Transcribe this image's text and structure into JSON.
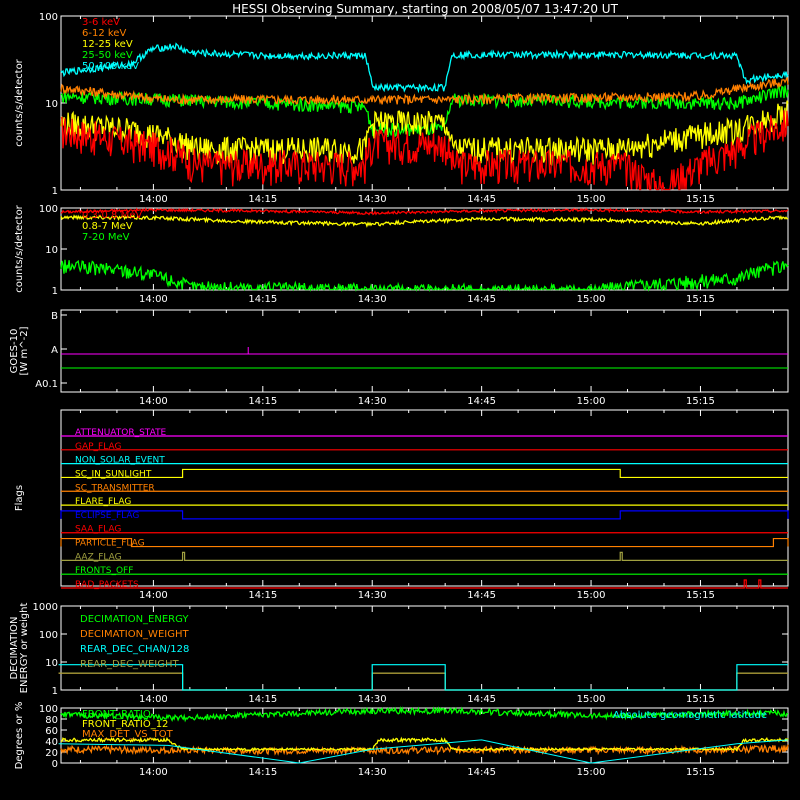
{
  "title": "HESSI Observing Summary, starting on 2008/05/07 13:47:20 UT",
  "colors": {
    "background": "#000000",
    "axis": "#ffffff",
    "red": "#ff0000",
    "orange": "#ff8000",
    "yellow": "#ffff00",
    "green": "#00ff00",
    "cyan": "#00ffff",
    "magenta": "#ff00ff",
    "blue": "#0000ff",
    "olive": "#a0a040"
  },
  "time_ticks": [
    "14:00",
    "14:15",
    "14:30",
    "14:45",
    "15:00",
    "15:15"
  ],
  "chart_data": [
    {
      "type": "line",
      "ylabel": "counts/s/detector",
      "log_scale": true,
      "ylim": [
        1,
        100
      ],
      "yticks": [
        "100",
        "10",
        "1"
      ],
      "legend_position": "top-left",
      "series": [
        {
          "name": "3-6 keV",
          "color": "#ff0000",
          "x": [
            "13:47",
            "13:57",
            "14:02",
            "14:06",
            "14:29",
            "14:30",
            "14:40",
            "14:41",
            "15:04",
            "15:10",
            "15:20",
            "15:27"
          ],
          "values": [
            5,
            3.5,
            3,
            2,
            2,
            3.5,
            3.5,
            2,
            2,
            1,
            3,
            6
          ]
        },
        {
          "name": "6-12 keV",
          "color": "#ff8000",
          "x": [
            "13:47",
            "13:57",
            "14:02",
            "14:30",
            "14:40",
            "15:15",
            "15:27"
          ],
          "values": [
            15,
            12,
            11,
            11,
            11,
            12,
            18
          ]
        },
        {
          "name": "12-25 keV",
          "color": "#ffff00",
          "x": [
            "13:47",
            "13:57",
            "14:02",
            "14:06",
            "14:29",
            "14:30",
            "14:40",
            "14:41",
            "15:04",
            "15:20",
            "15:27"
          ],
          "values": [
            6,
            5,
            4,
            3,
            3,
            6,
            6,
            3,
            3,
            5,
            8
          ]
        },
        {
          "name": "25-50 keV",
          "color": "#00ff00",
          "x": [
            "13:47",
            "14:02",
            "14:29",
            "14:30",
            "14:40",
            "14:41",
            "15:20",
            "15:27"
          ],
          "values": [
            12,
            11,
            9,
            5,
            5,
            11,
            10,
            14
          ]
        },
        {
          "name": "50-100 keV",
          "color": "#00ffff",
          "x": [
            "13:47",
            "13:57",
            "14:00",
            "14:03",
            "14:05",
            "14:15",
            "14:29",
            "14:30",
            "14:40",
            "14:41",
            "15:04",
            "15:20",
            "15:21",
            "15:27"
          ],
          "values": [
            22,
            28,
            42,
            45,
            38,
            35,
            35,
            15,
            15,
            36,
            36,
            35,
            18,
            22
          ]
        }
      ]
    },
    {
      "type": "line",
      "ylabel": "counts/s/detector",
      "log_scale": true,
      "ylim": [
        1,
        100
      ],
      "yticks": [
        "100",
        "10",
        "1"
      ],
      "legend_position": "top-left",
      "series": [
        {
          "name": "0.3-0.8 MeV",
          "color": "#ff0000",
          "x": [
            "13:47",
            "14:00",
            "14:15",
            "14:30",
            "14:45",
            "15:00",
            "15:15",
            "15:27"
          ],
          "values": [
            80,
            90,
            85,
            75,
            85,
            90,
            80,
            85
          ]
        },
        {
          "name": "0.8-7 MeV",
          "color": "#ffff00",
          "x": [
            "13:47",
            "14:00",
            "14:15",
            "14:30",
            "14:45",
            "15:00",
            "15:15",
            "15:27"
          ],
          "values": [
            60,
            58,
            45,
            40,
            55,
            52,
            42,
            60
          ]
        },
        {
          "name": "7-20 MeV",
          "color": "#00ff00",
          "x": [
            "13:47",
            "13:57",
            "14:05",
            "14:30",
            "14:45",
            "15:00",
            "15:20",
            "15:27"
          ],
          "values": [
            4,
            3,
            1.2,
            1,
            1,
            1,
            2,
            4
          ]
        }
      ]
    },
    {
      "type": "line",
      "ylabel": "GOES-10 [W m^-2]",
      "ylim": [
        "A0.1",
        "B"
      ],
      "yticks": [
        "B",
        "A",
        "A0.1"
      ],
      "series": [
        {
          "color": "#ff00ff",
          "x": [
            "13:47",
            "15:27"
          ],
          "values": [
            "A",
            "A"
          ]
        },
        {
          "color": "#00ff00",
          "x": [
            "13:47",
            "15:27"
          ],
          "values": [
            "A0.1+",
            "A0.1+"
          ]
        }
      ]
    },
    {
      "type": "table",
      "ylabel": "Flags",
      "flags": [
        {
          "name": "ATTENUATOR_STATE",
          "color": "#ff00ff",
          "on": []
        },
        {
          "name": "GAP_FLAG",
          "color": "#ff0000",
          "on": []
        },
        {
          "name": "NON_SOLAR_EVENT",
          "color": "#00ffff",
          "on": []
        },
        {
          "name": "SC_IN_SUNLIGHT",
          "color": "#ffff00",
          "on": [
            [
              "14:04",
              "15:04"
            ]
          ]
        },
        {
          "name": "SC_TRANSMITTER",
          "color": "#ff8000",
          "on": []
        },
        {
          "name": "FLARE_FLAG",
          "color": "#ffff00",
          "on": []
        },
        {
          "name": "ECLIPSE_FLAG",
          "color": "#0000ff",
          "on": [
            [
              "13:47",
              "14:04"
            ],
            [
              "15:04",
              "15:27"
            ]
          ]
        },
        {
          "name": "SAA_FLAG",
          "color": "#ff0000",
          "on": []
        },
        {
          "name": "PARTICLE_FLAG",
          "color": "#ff8000",
          "on": [
            [
              "13:47",
              "13:57"
            ],
            [
              "15:25",
              "15:27"
            ]
          ]
        },
        {
          "name": "AAZ_FLAG",
          "color": "#a0a040",
          "on": [
            [
              "14:04",
              "14:04"
            ],
            [
              "15:04",
              "15:04"
            ]
          ]
        },
        {
          "name": "FRONTS_OFF",
          "color": "#00ff00",
          "on": []
        },
        {
          "name": "BAD_PACKETS",
          "color": "#ff0000",
          "on": [
            [
              "15:21",
              "15:21"
            ],
            [
              "15:23",
              "15:23"
            ]
          ]
        }
      ]
    },
    {
      "type": "line",
      "ylabel": "DECIMATION ENERGY or weight",
      "log_scale": true,
      "ylim": [
        1,
        1000
      ],
      "yticks": [
        "1000",
        "100",
        "10",
        "1"
      ],
      "legend_position": "top-left",
      "series": [
        {
          "name": "DECIMATION_ENERGY",
          "color": "#00ff00",
          "x": [
            "13:47",
            "15:27"
          ],
          "values": [
            0,
            0
          ]
        },
        {
          "name": "DECIMATION_WEIGHT",
          "color": "#ff8000",
          "x": [
            "13:47",
            "14:04",
            "14:04",
            "14:30",
            "14:30",
            "14:40",
            "14:40",
            "15:20",
            "15:20",
            "15:27"
          ],
          "values": [
            4,
            4,
            1,
            1,
            4,
            4,
            1,
            1,
            4,
            4
          ]
        },
        {
          "name": "REAR_DEC_CHAN/128",
          "color": "#00ffff",
          "x": [
            "13:47",
            "14:04",
            "14:04",
            "14:30",
            "14:30",
            "14:40",
            "14:40",
            "15:20",
            "15:20",
            "15:27"
          ],
          "values": [
            8,
            8,
            1,
            1,
            8,
            8,
            1,
            1,
            8,
            8
          ]
        },
        {
          "name": "REAR_DEC_WEIGHT",
          "color": "#a0a040",
          "x": [
            "13:47",
            "14:04",
            "14:04",
            "14:30",
            "14:30",
            "14:40",
            "14:40",
            "15:20",
            "15:20",
            "15:27"
          ],
          "values": [
            4,
            4,
            1,
            1,
            4,
            4,
            1,
            1,
            4,
            4
          ]
        }
      ]
    },
    {
      "type": "line",
      "ylabel": "Degrees or %",
      "ylim": [
        0,
        100
      ],
      "yticks": [
        "100",
        "80",
        "60",
        "40",
        "20",
        "0"
      ],
      "annotation": "Absolute geomagnetic latitude",
      "legend_position": "top-left",
      "series": [
        {
          "name": "FRONT_RATIO",
          "color": "#00ff00",
          "x": [
            "13:47",
            "14:04",
            "14:30",
            "14:40",
            "15:04",
            "15:20",
            "15:27"
          ],
          "values": [
            88,
            82,
            95,
            95,
            85,
            90,
            90
          ]
        },
        {
          "name": "FRONT_RATIO_12",
          "color": "#ffff00",
          "x": [
            "13:47",
            "14:02",
            "14:04",
            "14:30",
            "14:31",
            "14:40",
            "14:41",
            "15:20",
            "15:21",
            "15:27"
          ],
          "values": [
            42,
            42,
            25,
            25,
            42,
            42,
            25,
            25,
            42,
            42
          ]
        },
        {
          "name": "MAX_DET_VS_TOT",
          "color": "#ff8000",
          "x": [
            "13:47",
            "14:15",
            "14:45",
            "15:15",
            "15:27"
          ],
          "values": [
            25,
            22,
            24,
            23,
            27
          ]
        },
        {
          "color": "#00ffff",
          "x": [
            "13:47",
            "14:02",
            "14:20",
            "14:30",
            "14:45",
            "15:00",
            "15:20",
            "15:27"
          ],
          "values": [
            35,
            32,
            0,
            25,
            42,
            0,
            35,
            42
          ]
        }
      ]
    }
  ]
}
